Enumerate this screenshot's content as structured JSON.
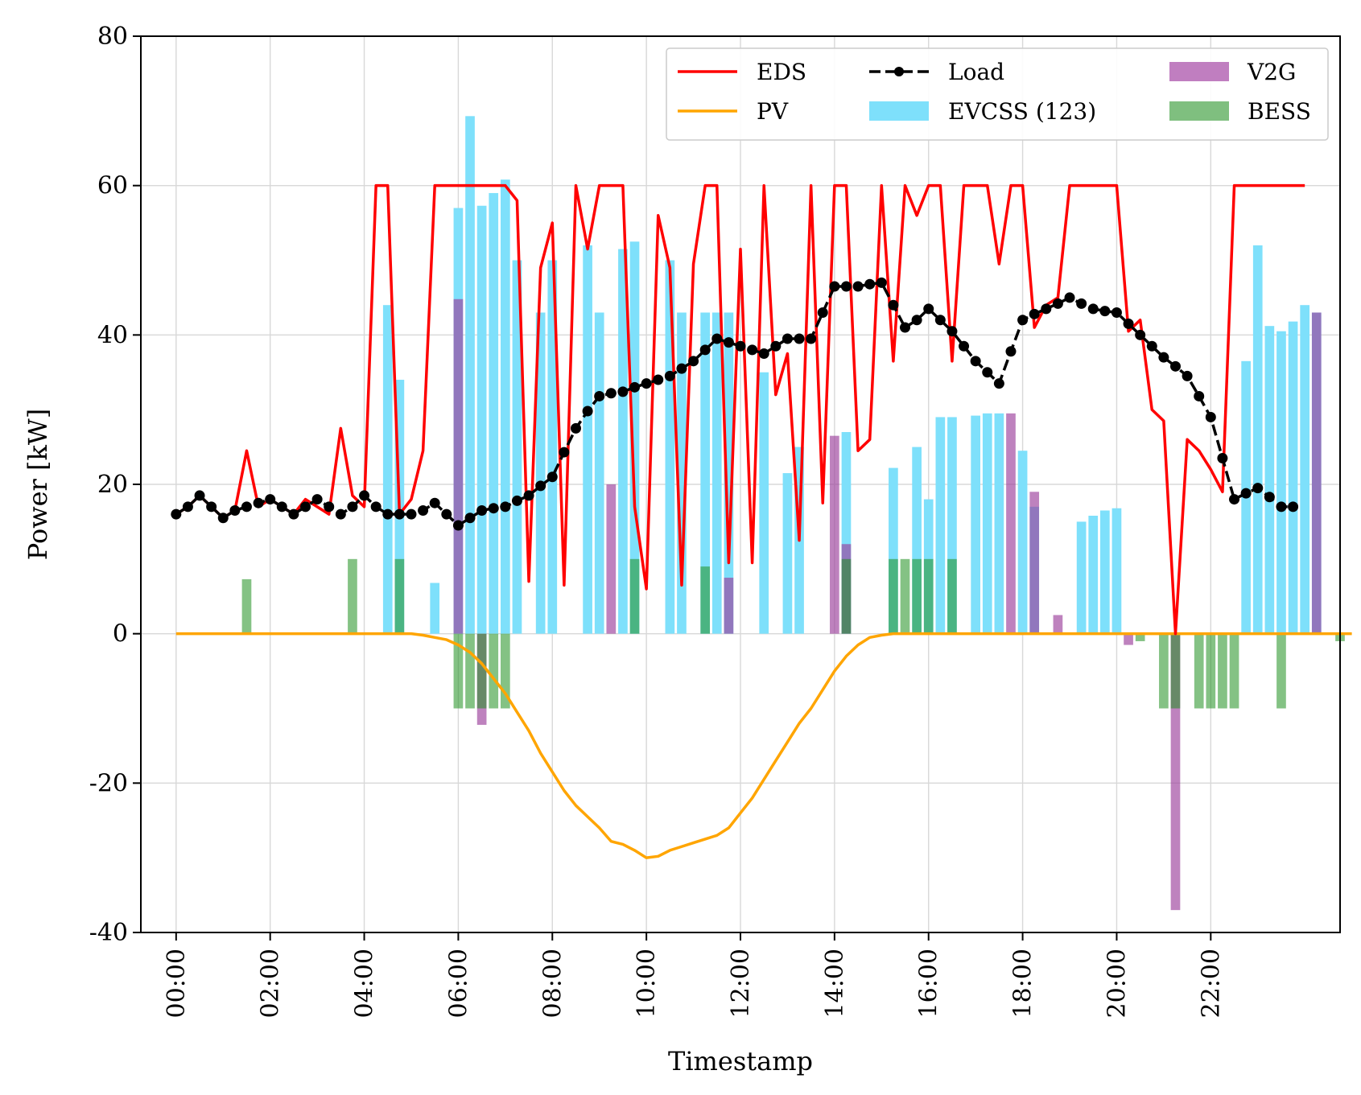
{
  "chart_data": {
    "type": "bar+line",
    "title": "",
    "xlabel": "Timestamp",
    "ylabel": "Power [kW]",
    "ylim": [
      -40,
      80
    ],
    "yticks": [
      80,
      60,
      40,
      20,
      0,
      -20,
      -40
    ],
    "yticklabels": [
      "80",
      "60",
      "40",
      "20",
      "0",
      "-20",
      "-40"
    ],
    "xlim": [
      "-00:45",
      "24:45"
    ],
    "xticks": [
      "00:00",
      "02:00",
      "04:00",
      "06:00",
      "08:00",
      "10:00",
      "12:00",
      "14:00",
      "16:00",
      "18:00",
      "20:00",
      "22:00"
    ],
    "x_resolution": "15 min (96 timestamps, 00:00 to 23:45)",
    "grid": true,
    "legend_position": "upper-right",
    "legend": {
      "eds": "EDS",
      "load": "Load",
      "v2g": "V2G",
      "pv": "PV",
      "evcss": "EVCSS (123)",
      "bess": "BESS"
    },
    "colors": {
      "eds": "#ff0000",
      "pv": "#ffa500",
      "load": "#000000",
      "evcss": "#7ee0fb",
      "v2g": "#c07ec0",
      "bess": "#7fbf7f"
    },
    "series": {
      "eds": [
        16,
        17,
        18.5,
        17,
        15.5,
        16.5,
        24.5,
        17,
        18,
        17,
        16,
        18,
        17,
        16,
        27.5,
        18.5,
        17,
        60,
        60,
        16,
        18,
        24.5,
        60,
        60,
        60,
        60,
        60,
        60,
        60,
        58,
        7,
        49,
        55,
        6.5,
        60,
        51.5,
        60,
        60,
        60,
        17,
        6,
        56,
        49,
        6.5,
        49.5,
        60,
        60,
        9.5,
        51.5,
        9.5,
        60,
        32,
        37.5,
        12.5,
        60,
        17.5,
        60,
        60,
        24.5,
        26,
        60,
        36.5,
        60,
        56,
        60,
        60,
        36.5,
        60,
        60,
        60,
        49.5,
        60,
        60,
        41,
        44,
        45,
        60,
        60,
        60,
        60,
        60,
        40.5,
        42,
        30,
        28.5,
        0,
        26,
        24.5,
        22,
        19,
        60,
        60,
        60,
        60,
        60,
        60,
        60
      ],
      "load": [
        16,
        17,
        18.5,
        17,
        15.5,
        16.5,
        17,
        17.5,
        18,
        17,
        16,
        17,
        18,
        17,
        16,
        17,
        18.5,
        17,
        16,
        16,
        16,
        16.5,
        17.5,
        16,
        14.5,
        15.5,
        16.5,
        16.8,
        17,
        17.8,
        18.5,
        19.8,
        21,
        24.3,
        27.5,
        29.8,
        31.8,
        32.2,
        32.4,
        33,
        33.5,
        34,
        34.5,
        35.5,
        36.5,
        38,
        39.5,
        39,
        38.5,
        38,
        37.5,
        38.5,
        39.5,
        39.5,
        39.5,
        43,
        46.5,
        46.5,
        46.5,
        46.8,
        47,
        44,
        41,
        42,
        43.5,
        42,
        40.5,
        38.5,
        36.5,
        35,
        33.5,
        37.8,
        42,
        42.8,
        43.5,
        44.2,
        45,
        44.2,
        43.5,
        43.2,
        43,
        41.5,
        40,
        38.5,
        37,
        35.8,
        34.5,
        31.8,
        29,
        23.5,
        18,
        18.8,
        19.5,
        18.3,
        17,
        17
      ],
      "pv": [
        0,
        0,
        0,
        0,
        0,
        0,
        0,
        0,
        0,
        0,
        0,
        0,
        0,
        0,
        0,
        0,
        0,
        0,
        0,
        0,
        0,
        -0.2,
        -0.5,
        -0.8,
        -1.5,
        -2.5,
        -4,
        -6,
        -8,
        -10.5,
        -13,
        -16,
        -18.5,
        -21,
        -23,
        -24.5,
        -26,
        -27.8,
        -28.2,
        -29,
        -30,
        -29.8,
        -29,
        -28.5,
        -28,
        -27.5,
        -27,
        -26,
        -24,
        -22,
        -19.5,
        -17,
        -14.5,
        -12,
        -10,
        -7.5,
        -5,
        -3,
        -1.5,
        -0.5,
        -0.2,
        0,
        0,
        0,
        0,
        0,
        0,
        0,
        0,
        0,
        0,
        0,
        0,
        0,
        0,
        0,
        0,
        0,
        0,
        0,
        0,
        0,
        0,
        0,
        0,
        0,
        0,
        0,
        0,
        0,
        0,
        0,
        0,
        0,
        0,
        0,
        0,
        0,
        0,
        0,
        0
      ],
      "evcss": [
        0,
        0,
        0,
        0,
        0,
        0,
        0,
        0,
        0,
        0,
        0,
        0,
        0,
        0,
        0,
        0,
        0,
        0,
        44,
        34,
        0,
        0,
        6.8,
        0,
        57,
        69.3,
        57.3,
        59,
        60.8,
        50,
        0,
        43,
        50,
        0,
        0,
        52,
        43,
        0,
        51.5,
        52.5,
        0,
        0,
        50,
        43,
        0,
        43,
        43,
        43,
        0,
        0,
        35,
        0,
        21.5,
        25,
        0,
        0,
        0,
        27,
        0,
        0,
        0,
        22.2,
        0,
        25,
        18,
        29,
        29,
        0,
        29.2,
        29.5,
        29.5,
        0,
        24.5,
        17,
        0,
        0,
        0,
        15,
        15.8,
        16.5,
        16.8,
        0,
        0,
        0,
        0,
        0,
        0,
        0,
        0,
        0,
        0,
        36.5,
        52,
        41.2,
        40.5,
        41.8,
        44,
        43
      ],
      "v2g": [
        0,
        0,
        0,
        0,
        0,
        0,
        0,
        0,
        0,
        0,
        0,
        0,
        0,
        0,
        0,
        0,
        0,
        0,
        0,
        0,
        0,
        0,
        0,
        0,
        44.8,
        0,
        -12.2,
        0,
        0,
        0,
        0,
        0,
        0,
        0,
        0,
        0,
        0,
        20,
        0,
        0,
        0,
        0,
        0,
        0,
        0,
        0,
        0,
        7.5,
        0,
        0,
        0,
        0,
        0,
        0,
        0,
        0,
        26.5,
        12,
        0,
        0,
        0,
        0,
        0,
        0,
        0,
        0,
        0,
        0,
        0,
        0,
        0,
        29.5,
        0,
        19,
        0,
        2.5,
        0,
        0,
        0,
        0,
        0,
        -1.5,
        0,
        0,
        0,
        -37,
        0,
        0,
        0,
        0,
        0,
        0,
        0,
        0,
        0,
        0,
        0,
        43
      ],
      "bess": [
        0,
        0,
        0,
        0,
        0,
        0,
        7.3,
        0,
        0,
        0,
        0,
        0,
        0,
        0,
        0,
        10,
        0,
        0,
        0,
        10,
        0,
        0,
        0,
        0,
        -10,
        -10,
        -10,
        -10,
        -10,
        0,
        0,
        0,
        0,
        0,
        0,
        0,
        0,
        0,
        0,
        10,
        0,
        0,
        0,
        0,
        0,
        9,
        0,
        0,
        0,
        0,
        0,
        0,
        0,
        0,
        0,
        0,
        0,
        10,
        0,
        0,
        0,
        10,
        10,
        10,
        10,
        0,
        10,
        0,
        0,
        0,
        0,
        0,
        0,
        0,
        0,
        0,
        0,
        0,
        0,
        0,
        0,
        0,
        -1,
        0,
        -10,
        -10,
        0,
        -10,
        -10,
        -10,
        -10,
        0,
        0,
        0,
        -10,
        0,
        0,
        0,
        0,
        -1
      ]
    }
  }
}
